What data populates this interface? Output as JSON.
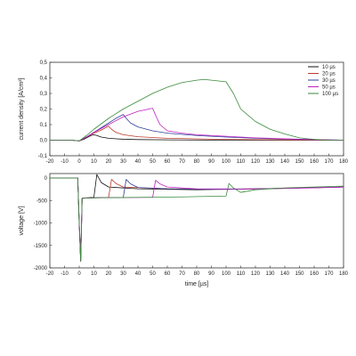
{
  "chart_data": [
    {
      "type": "line",
      "xlabel": "",
      "ylabel": "current density [A/cm²]",
      "xlim": [
        -20,
        180
      ],
      "ylim": [
        -0.1,
        0.5
      ],
      "xticks": [
        -20,
        -10,
        0,
        10,
        20,
        30,
        40,
        50,
        60,
        70,
        80,
        90,
        100,
        110,
        120,
        130,
        140,
        150,
        160,
        170,
        180
      ],
      "yticks": [
        -0.1,
        0.0,
        0.1,
        0.2,
        0.3,
        0.4,
        0.5
      ],
      "ytick_labels": [
        "-0,1",
        "0,0",
        "0,1",
        "0,2",
        "0,3",
        "0,4",
        "0,5"
      ],
      "grid": false,
      "legend": "top-right",
      "series": [
        {
          "name": "10 µs",
          "color": "#111111",
          "x": [
            -20,
            -5,
            0,
            3,
            6,
            8,
            10,
            12,
            15,
            20,
            30,
            40,
            60,
            100,
            180
          ],
          "y": [
            0.0,
            0.0,
            -0.005,
            0.005,
            0.02,
            0.03,
            0.035,
            0.03,
            0.02,
            0.012,
            0.006,
            0.004,
            0.002,
            0.0,
            0.0
          ]
        },
        {
          "name": "20 µs",
          "color": "#c0392b",
          "x": [
            -20,
            -5,
            0,
            5,
            10,
            15,
            20,
            22,
            25,
            30,
            40,
            60,
            100,
            180
          ],
          "y": [
            0.0,
            0.0,
            -0.005,
            0.02,
            0.045,
            0.065,
            0.09,
            0.07,
            0.05,
            0.035,
            0.022,
            0.012,
            0.005,
            0.0
          ]
        },
        {
          "name": "30 µs",
          "color": "#2c3e9a",
          "x": [
            -20,
            -5,
            0,
            5,
            10,
            15,
            20,
            25,
            30,
            32,
            35,
            40,
            50,
            60,
            80,
            100,
            120,
            150,
            180
          ],
          "y": [
            0.0,
            0.0,
            -0.005,
            0.02,
            0.05,
            0.08,
            0.11,
            0.14,
            0.165,
            0.14,
            0.11,
            0.085,
            0.06,
            0.045,
            0.03,
            0.02,
            0.012,
            0.005,
            0.0
          ]
        },
        {
          "name": "50 µs",
          "color": "#c020c0",
          "x": [
            -20,
            -5,
            0,
            5,
            10,
            20,
            30,
            40,
            45,
            50,
            52,
            55,
            60,
            70,
            80,
            100,
            120,
            150,
            180
          ],
          "y": [
            0.0,
            0.0,
            -0.005,
            0.02,
            0.05,
            0.1,
            0.15,
            0.185,
            0.195,
            0.205,
            0.16,
            0.1,
            0.06,
            0.045,
            0.035,
            0.025,
            0.015,
            0.006,
            0.0
          ]
        },
        {
          "name": "100 µs",
          "color": "#3a8a3a",
          "x": [
            -20,
            -5,
            0,
            5,
            10,
            20,
            30,
            40,
            50,
            60,
            70,
            80,
            85,
            90,
            95,
            100,
            105,
            110,
            120,
            130,
            140,
            150,
            160,
            170,
            180
          ],
          "y": [
            0.0,
            0.0,
            -0.005,
            0.03,
            0.07,
            0.14,
            0.2,
            0.25,
            0.3,
            0.34,
            0.37,
            0.385,
            0.39,
            0.385,
            0.38,
            0.375,
            0.3,
            0.2,
            0.12,
            0.07,
            0.04,
            0.015,
            0.005,
            0.0,
            0.0
          ]
        }
      ]
    },
    {
      "type": "line",
      "xlabel": "time [µs]",
      "ylabel": "voltage [V]",
      "xlim": [
        -20,
        180
      ],
      "ylim": [
        -2000,
        100
      ],
      "xticks": [
        -20,
        -10,
        0,
        10,
        20,
        30,
        40,
        50,
        60,
        70,
        80,
        90,
        100,
        110,
        120,
        130,
        140,
        150,
        160,
        170,
        180
      ],
      "yticks": [
        -2000,
        -1500,
        -1000,
        -500,
        0
      ],
      "ytick_labels": [
        "-2000",
        "-1500",
        "-1000",
        "-500",
        "0"
      ],
      "grid": false,
      "series": [
        {
          "name": "10 µs",
          "color": "#111111",
          "x": [
            -20,
            -1,
            0,
            1,
            2,
            5,
            10,
            12,
            15,
            20,
            40,
            80,
            120,
            180
          ],
          "y": [
            0,
            0,
            -1000,
            -1850,
            -450,
            -440,
            -430,
            80,
            -100,
            -200,
            -240,
            -260,
            -240,
            -200
          ]
        },
        {
          "name": "20 µs",
          "color": "#c0392b",
          "x": [
            -20,
            -1,
            0,
            1,
            2,
            10,
            20,
            22,
            25,
            30,
            60,
            100,
            140,
            180
          ],
          "y": [
            0,
            0,
            -1000,
            -1850,
            -450,
            -440,
            -430,
            -30,
            -120,
            -200,
            -240,
            -250,
            -230,
            -200
          ]
        },
        {
          "name": "30 µs",
          "color": "#2c3e9a",
          "x": [
            -20,
            -1,
            0,
            1,
            2,
            10,
            20,
            30,
            32,
            35,
            40,
            60,
            100,
            140,
            180
          ],
          "y": [
            0,
            0,
            -1000,
            -1850,
            -450,
            -440,
            -435,
            -430,
            -30,
            -130,
            -210,
            -240,
            -250,
            -230,
            -200
          ]
        },
        {
          "name": "50 µs",
          "color": "#c020c0",
          "x": [
            -20,
            -1,
            0,
            1,
            2,
            10,
            30,
            50,
            52,
            55,
            60,
            80,
            120,
            160,
            180
          ],
          "y": [
            0,
            0,
            -1000,
            -1850,
            -450,
            -440,
            -435,
            -430,
            -50,
            -130,
            -200,
            -240,
            -245,
            -220,
            -200
          ]
        },
        {
          "name": "100 µs",
          "color": "#3a8a3a",
          "x": [
            -20,
            -1,
            0,
            1,
            2,
            10,
            40,
            70,
            100,
            102,
            105,
            110,
            120,
            140,
            160,
            180
          ],
          "y": [
            0,
            0,
            -1000,
            -1850,
            -450,
            -440,
            -430,
            -420,
            -400,
            -120,
            -220,
            -320,
            -260,
            -220,
            -200,
            -180
          ]
        }
      ]
    }
  ]
}
